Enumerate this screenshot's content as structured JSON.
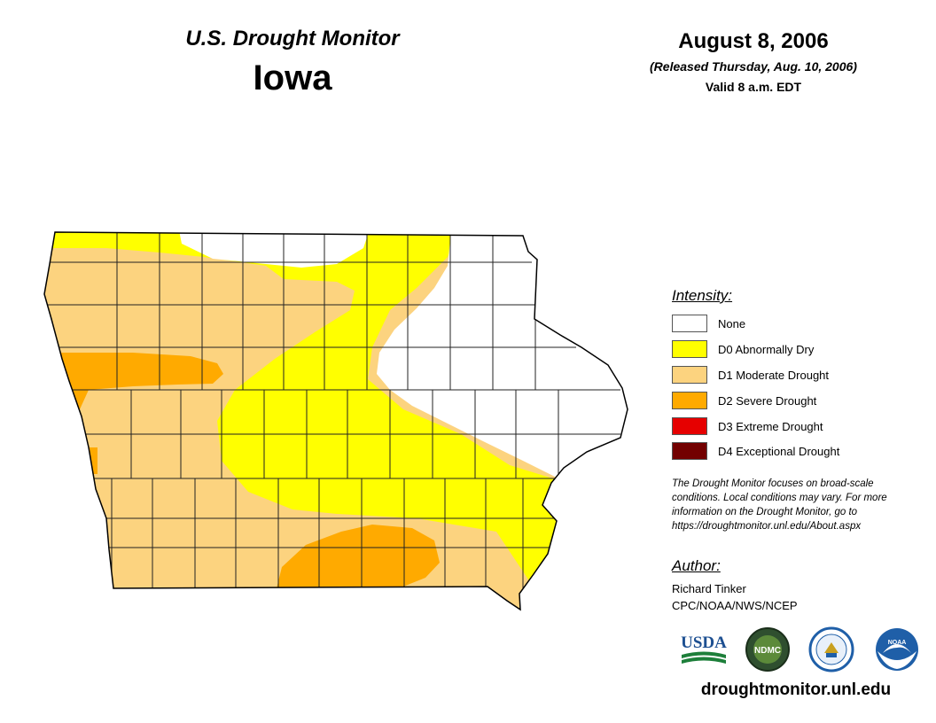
{
  "header": {
    "title": "U.S. Drought Monitor",
    "state": "Iowa",
    "date": "August 8, 2006",
    "released": "(Released Thursday, Aug. 10, 2006)",
    "valid": "Valid 8 a.m. EDT"
  },
  "legend": {
    "heading": "Intensity:",
    "items": [
      {
        "label": "None",
        "color": "#ffffff"
      },
      {
        "label": "D0 Abnormally Dry",
        "color": "#ffff00"
      },
      {
        "label": "D1 Moderate Drought",
        "color": "#fcd37f"
      },
      {
        "label": "D2 Severe Drought",
        "color": "#ffaa00"
      },
      {
        "label": "D3 Extreme Drought",
        "color": "#e60000"
      },
      {
        "label": "D4 Exceptional Drought",
        "color": "#730000"
      }
    ]
  },
  "note": {
    "lines": [
      "The Drought Monitor focuses on broad-scale",
      "conditions. Local conditions may vary. For more",
      "information on the Drought Monitor, go to",
      "https://droughtmonitor.unl.edu/About.aspx"
    ]
  },
  "author": {
    "heading": "Author:",
    "name": "Richard Tinker",
    "org": "CPC/NOAA/NWS/NCEP"
  },
  "logos": {
    "usda": "USDA",
    "ndmc": "NDMC",
    "noaa": "NOAA"
  },
  "footer": {
    "site": "droughtmonitor.unl.edu"
  }
}
